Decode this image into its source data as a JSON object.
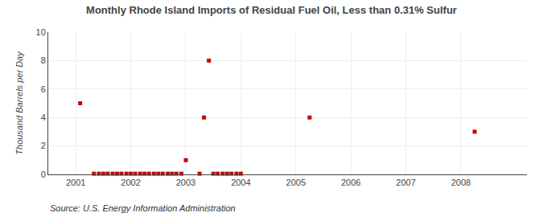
{
  "chart_data": {
    "type": "scatter",
    "title": "Monthly Rhode Island Imports of Residual Fuel Oil, Less than 0.31% Sulfur",
    "ylabel": "Thousand Barrels per Day",
    "annotations": [
      "Source: U.S. Energy Information Administration"
    ],
    "x": [
      2001.08,
      2001.33,
      2001.42,
      2001.5,
      2001.58,
      2001.67,
      2001.75,
      2001.83,
      2001.92,
      2002.0,
      2002.08,
      2002.17,
      2002.25,
      2002.33,
      2002.42,
      2002.5,
      2002.58,
      2002.67,
      2002.75,
      2002.83,
      2002.92,
      2003.0,
      2003.25,
      2003.33,
      2003.42,
      2003.5,
      2003.58,
      2003.67,
      2003.75,
      2003.83,
      2003.92,
      2004.0,
      2005.25,
      2008.25
    ],
    "values": [
      5.0,
      0.05,
      0.05,
      0.05,
      0.05,
      0.05,
      0.05,
      0.05,
      0.05,
      0.05,
      0.05,
      0.05,
      0.05,
      0.05,
      0.05,
      0.05,
      0.05,
      0.05,
      0.05,
      0.05,
      0.05,
      1.0,
      0.05,
      4.0,
      8.0,
      0.05,
      0.05,
      0.05,
      0.05,
      0.05,
      0.05,
      0.05,
      4.0,
      3.0
    ],
    "color": "#cc0000",
    "marker": "square",
    "xlim": [
      2000.5,
      2009.2
    ],
    "ylim": [
      0,
      10
    ],
    "xticks": [
      2001,
      2002,
      2003,
      2004,
      2005,
      2006,
      2007,
      2008
    ],
    "yticks": [
      0,
      2,
      4,
      6,
      8,
      10
    ],
    "grid": true
  }
}
